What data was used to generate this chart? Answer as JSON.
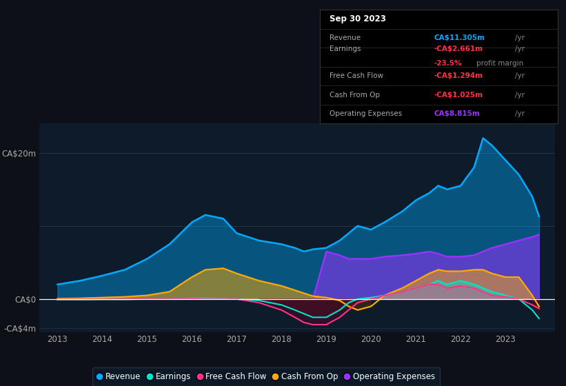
{
  "bg_color": "#0d1117",
  "plot_bg_color": "#0d1b2a",
  "grid_color": "#2a3a4a",
  "zero_line_color": "#ffffff",
  "revenue_color": "#00aaff",
  "earnings_color": "#00e5cc",
  "fcf_color": "#ff3388",
  "cashop_color": "#ffaa00",
  "opex_color": "#9933ff",
  "years_raw": [
    2013.0,
    2013.5,
    2014.0,
    2014.5,
    2015.0,
    2015.5,
    2016.0,
    2016.3,
    2016.7,
    2017.0,
    2017.5,
    2018.0,
    2018.3,
    2018.5,
    2018.7,
    2019.0,
    2019.3,
    2019.5,
    2019.7,
    2020.0,
    2020.3,
    2020.7,
    2021.0,
    2021.3,
    2021.5,
    2021.7,
    2022.0,
    2022.3,
    2022.5,
    2022.7,
    2023.0,
    2023.3,
    2023.6,
    2023.75
  ],
  "revenue": [
    2.0,
    2.5,
    3.2,
    4.0,
    5.5,
    7.5,
    10.5,
    11.5,
    11.0,
    9.0,
    8.0,
    7.5,
    7.0,
    6.5,
    6.8,
    7.0,
    8.0,
    9.0,
    10.0,
    9.5,
    10.5,
    12.0,
    13.5,
    14.5,
    15.5,
    15.0,
    15.5,
    18.0,
    22.0,
    21.0,
    19.0,
    17.0,
    14.0,
    11.3
  ],
  "earnings": [
    -0.1,
    -0.1,
    -0.05,
    -0.05,
    0.0,
    0.0,
    0.1,
    0.1,
    0.05,
    0.0,
    -0.2,
    -0.8,
    -1.5,
    -2.0,
    -2.5,
    -2.5,
    -1.5,
    -0.5,
    0.0,
    0.2,
    0.5,
    1.0,
    1.5,
    2.0,
    2.5,
    2.0,
    2.5,
    2.0,
    1.5,
    1.0,
    0.5,
    0.0,
    -1.5,
    -2.661
  ],
  "free_cash_flow": [
    -0.05,
    -0.05,
    -0.03,
    -0.03,
    0.0,
    0.0,
    0.05,
    0.0,
    0.0,
    0.0,
    -0.5,
    -1.5,
    -2.5,
    -3.2,
    -3.5,
    -3.5,
    -2.5,
    -1.5,
    -0.5,
    0.0,
    0.5,
    1.0,
    1.5,
    2.0,
    2.0,
    1.5,
    1.8,
    1.5,
    1.0,
    0.5,
    0.3,
    0.0,
    -0.8,
    -1.294
  ],
  "cash_from_op": [
    0.05,
    0.1,
    0.2,
    0.3,
    0.5,
    1.0,
    3.0,
    4.0,
    4.2,
    3.5,
    2.5,
    1.8,
    1.2,
    0.8,
    0.4,
    0.2,
    -0.2,
    -1.0,
    -1.5,
    -1.0,
    0.5,
    1.5,
    2.5,
    3.5,
    4.0,
    3.8,
    3.8,
    4.0,
    4.0,
    3.5,
    3.0,
    3.0,
    0.5,
    -1.025
  ],
  "operating_expenses_x": [
    2018.7,
    2019.0,
    2019.3,
    2019.5,
    2019.7,
    2020.0,
    2020.3,
    2020.7,
    2021.0,
    2021.3,
    2021.5,
    2021.7,
    2022.0,
    2022.3,
    2022.5,
    2022.7,
    2023.0,
    2023.3,
    2023.6,
    2023.75
  ],
  "operating_expenses_y": [
    0.0,
    6.5,
    6.0,
    5.5,
    5.5,
    5.5,
    5.8,
    6.0,
    6.2,
    6.5,
    6.2,
    5.8,
    5.8,
    6.0,
    6.5,
    7.0,
    7.5,
    8.0,
    8.5,
    8.815
  ],
  "ylim": [
    -4.5,
    24
  ],
  "ytick_positions": [
    -4,
    0,
    20
  ],
  "ytick_labels": [
    "-CA$4m",
    "CA$0",
    "CA$20m"
  ],
  "xtick_years": [
    2013,
    2014,
    2015,
    2016,
    2017,
    2018,
    2019,
    2020,
    2021,
    2022,
    2023
  ],
  "info_date": "Sep 30 2023",
  "info_revenue_label": "Revenue",
  "info_revenue_val": "CA$11.305m",
  "info_earnings_label": "Earnings",
  "info_earnings_val": "-CA$2.661m",
  "info_margin_val": "-23.5%",
  "info_fcf_label": "Free Cash Flow",
  "info_fcf_val": "-CA$1.294m",
  "info_cashop_label": "Cash From Op",
  "info_cashop_val": "-CA$1.025m",
  "info_opex_label": "Operating Expenses",
  "info_opex_val": "CA$8.815m",
  "legend_labels": [
    "Revenue",
    "Earnings",
    "Free Cash Flow",
    "Cash From Op",
    "Operating Expenses"
  ],
  "legend_colors": [
    "#00aaff",
    "#00e5cc",
    "#ff3388",
    "#ffaa00",
    "#9933ff"
  ]
}
